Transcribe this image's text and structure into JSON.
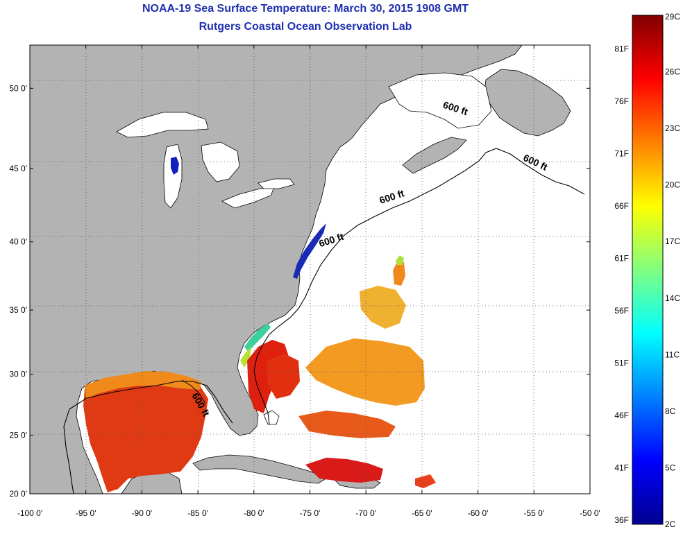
{
  "header": {
    "title": "NOAA-19 Sea Surface Temperature:  March 30, 2015 1908 GMT",
    "subtitle": "Rutgers Coastal Ocean Observation Lab"
  },
  "map": {
    "lon_range": [
      -100,
      -50
    ],
    "lat_range": [
      20,
      52.5
    ],
    "lon_ticks": [
      "-100 0'",
      "-95 0'",
      "-90 0'",
      "-85 0'",
      "-80 0'",
      "-75 0'",
      "-70 0'",
      "-65 0'",
      "-60 0'",
      "-55 0'",
      "-50 0'"
    ],
    "lat_ticks": [
      "20 0'",
      "25 0'",
      "30 0'",
      "35 0'",
      "40 0'",
      "45 0'",
      "50 0'"
    ],
    "isobath_labels": [
      {
        "text": "600 ft",
        "lon": -73,
        "lat": 39.9
      },
      {
        "text": "600 ft",
        "lon": -67.6,
        "lat": 42.9
      },
      {
        "text": "600 ft",
        "lon": -62.1,
        "lat": 48.6
      },
      {
        "text": "600 ft",
        "lon": -55,
        "lat": 45.2
      },
      {
        "text": "600 ft",
        "lon": -85,
        "lat": 27.4
      }
    ],
    "land_color": "#b3b3b3",
    "no_data_color": "#ffffff",
    "grid": "dotted"
  },
  "colorbar": {
    "left_labels": [
      "36F",
      "41F",
      "46F",
      "51F",
      "56F",
      "61F",
      "66F",
      "71F",
      "76F",
      "81F"
    ],
    "right_labels": [
      "2C",
      "5C",
      "8C",
      "11C",
      "14C",
      "17C",
      "20C",
      "23C",
      "26C",
      "29C"
    ],
    "range_c": [
      2,
      29
    ],
    "colors": [
      "#00008f",
      "#0000ff",
      "#0080ff",
      "#00ffff",
      "#80ff80",
      "#ffff00",
      "#ff8000",
      "#ff0000",
      "#800000"
    ]
  }
}
